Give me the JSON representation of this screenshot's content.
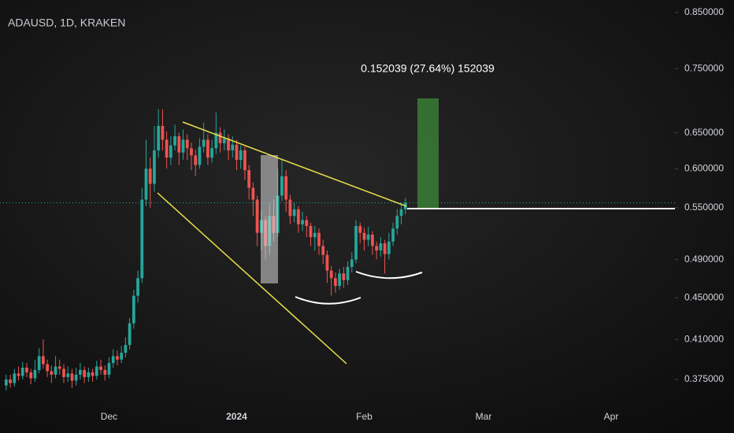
{
  "chart_data": {
    "type": "candlestick",
    "title": "ADAUSD, 1D, KRAKEN",
    "annotation": "0.152039 (27.64%) 152039",
    "log": true,
    "grid": false,
    "up_color": "#26a69a",
    "down_color": "#ef5350",
    "ylim": [
      0.357,
      0.874
    ],
    "yticks": [
      {
        "value": 0.85,
        "label": "0.850000"
      },
      {
        "value": 0.75,
        "label": "0.750000"
      },
      {
        "value": 0.65,
        "label": "0.650000"
      },
      {
        "value": 0.6,
        "label": "0.600000"
      },
      {
        "value": 0.55,
        "label": "0.550000"
      },
      {
        "value": 0.49,
        "label": "0.490000"
      },
      {
        "value": 0.45,
        "label": "0.450000"
      },
      {
        "value": 0.41,
        "label": "0.410000"
      },
      {
        "value": 0.375,
        "label": "0.375000"
      }
    ],
    "categories": [
      null,
      null,
      null,
      null,
      null,
      null,
      null,
      null,
      null,
      null,
      null,
      null,
      null,
      null,
      null,
      null,
      null,
      null,
      null,
      null,
      null,
      null,
      null,
      null,
      null,
      null,
      "Dec",
      null,
      null,
      null,
      null,
      null,
      null,
      null,
      null,
      null,
      null,
      null,
      null,
      null,
      null,
      null,
      null,
      null,
      null,
      null,
      null,
      null,
      null,
      null,
      null,
      null,
      null,
      null,
      null,
      null,
      null,
      "2024",
      null,
      null,
      null,
      null,
      null,
      null,
      null,
      null,
      null,
      null,
      null,
      null,
      null,
      null,
      null,
      null,
      null,
      null,
      null,
      null,
      null,
      null,
      null,
      null,
      null,
      null,
      null,
      null,
      null,
      null,
      "Feb",
      null,
      null,
      null,
      null,
      null,
      null,
      null,
      null,
      null,
      null,
      null,
      null,
      null,
      null,
      null,
      null,
      null,
      null,
      null,
      null,
      null,
      null,
      null,
      null,
      null,
      null,
      null,
      null,
      "Mar",
      null,
      null,
      null,
      null,
      null,
      null,
      null,
      null,
      null,
      null,
      null,
      null,
      null,
      null,
      null,
      null,
      null,
      null,
      null,
      null,
      null,
      null,
      null,
      null,
      null,
      null,
      null,
      null,
      null,
      null,
      "Apr",
      null,
      null,
      null,
      null,
      null,
      null,
      null,
      null,
      null,
      null,
      null,
      null,
      null,
      null,
      null
    ],
    "ohlc": [
      null,
      [
        0.37,
        0.379,
        0.366,
        0.375
      ],
      [
        0.375,
        0.379,
        0.368,
        0.372
      ],
      [
        0.372,
        0.384,
        0.369,
        0.38
      ],
      [
        0.38,
        0.386,
        0.374,
        0.378
      ],
      [
        0.378,
        0.39,
        0.375,
        0.385
      ],
      [
        0.385,
        0.389,
        0.377,
        0.381
      ],
      [
        0.381,
        0.384,
        0.371,
        0.376
      ],
      [
        0.376,
        0.392,
        0.373,
        0.383
      ],
      [
        0.383,
        0.402,
        0.38,
        0.395
      ],
      [
        0.395,
        0.41,
        0.384,
        0.388
      ],
      [
        0.388,
        0.392,
        0.377,
        0.382
      ],
      [
        0.382,
        0.387,
        0.372,
        0.379
      ],
      [
        0.379,
        0.395,
        0.376,
        0.386
      ],
      [
        0.386,
        0.392,
        0.379,
        0.384
      ],
      [
        0.384,
        0.388,
        0.372,
        0.377
      ],
      [
        0.377,
        0.386,
        0.373,
        0.38
      ],
      [
        0.38,
        0.384,
        0.368,
        0.374
      ],
      [
        0.374,
        0.385,
        0.37,
        0.379
      ],
      [
        0.379,
        0.389,
        0.375,
        0.383
      ],
      [
        0.383,
        0.386,
        0.372,
        0.377
      ],
      [
        0.377,
        0.385,
        0.373,
        0.381
      ],
      [
        0.381,
        0.384,
        0.373,
        0.378
      ],
      [
        0.378,
        0.391,
        0.375,
        0.386
      ],
      [
        0.386,
        0.392,
        0.379,
        0.383
      ],
      [
        0.383,
        0.387,
        0.374,
        0.379
      ],
      [
        0.379,
        0.394,
        0.376,
        0.389
      ],
      [
        0.389,
        0.401,
        0.385,
        0.395
      ],
      [
        0.395,
        0.4,
        0.387,
        0.392
      ],
      [
        0.392,
        0.404,
        0.389,
        0.398
      ],
      [
        0.398,
        0.412,
        0.394,
        0.405
      ],
      [
        0.405,
        0.43,
        0.401,
        0.425
      ],
      [
        0.425,
        0.458,
        0.42,
        0.452
      ],
      [
        0.452,
        0.478,
        0.445,
        0.47
      ],
      [
        0.47,
        0.575,
        0.465,
        0.56
      ],
      [
        0.56,
        0.64,
        0.552,
        0.6
      ],
      [
        0.6,
        0.615,
        0.55,
        0.58
      ],
      [
        0.58,
        0.66,
        0.57,
        0.625
      ],
      [
        0.625,
        0.685,
        0.615,
        0.66
      ],
      [
        0.66,
        0.685,
        0.625,
        0.64
      ],
      [
        0.64,
        0.652,
        0.6,
        0.615
      ],
      [
        0.615,
        0.645,
        0.605,
        0.632
      ],
      [
        0.632,
        0.662,
        0.625,
        0.645
      ],
      [
        0.645,
        0.65,
        0.605,
        0.622
      ],
      [
        0.622,
        0.655,
        0.612,
        0.64
      ],
      [
        0.64,
        0.648,
        0.612,
        0.628
      ],
      [
        0.628,
        0.636,
        0.598,
        0.618
      ],
      [
        0.618,
        0.626,
        0.59,
        0.605
      ],
      [
        0.605,
        0.642,
        0.6,
        0.63
      ],
      [
        0.63,
        0.665,
        0.622,
        0.64
      ],
      [
        0.64,
        0.648,
        0.605,
        0.615
      ],
      [
        0.615,
        0.64,
        0.608,
        0.628
      ],
      [
        0.628,
        0.68,
        0.62,
        0.65
      ],
      [
        0.65,
        0.658,
        0.622,
        0.635
      ],
      [
        0.635,
        0.655,
        0.625,
        0.642
      ],
      [
        0.642,
        0.648,
        0.612,
        0.625
      ],
      [
        0.625,
        0.645,
        0.615,
        0.633
      ],
      [
        0.633,
        0.64,
        0.598,
        0.612
      ],
      [
        0.612,
        0.632,
        0.6,
        0.625
      ],
      [
        0.625,
        0.63,
        0.585,
        0.598
      ],
      [
        0.598,
        0.605,
        0.56,
        0.575
      ],
      [
        0.575,
        0.582,
        0.54,
        0.56
      ],
      [
        0.56,
        0.565,
        0.505,
        0.52
      ],
      [
        0.52,
        0.548,
        0.5,
        0.535
      ],
      [
        0.535,
        0.54,
        0.49,
        0.505
      ],
      [
        0.505,
        0.555,
        0.495,
        0.54
      ],
      [
        0.54,
        0.56,
        0.51,
        0.52
      ],
      [
        0.52,
        0.6,
        0.515,
        0.565
      ],
      [
        0.565,
        0.612,
        0.558,
        0.59
      ],
      [
        0.59,
        0.598,
        0.545,
        0.56
      ],
      [
        0.56,
        0.566,
        0.53,
        0.54
      ],
      [
        0.54,
        0.556,
        0.532,
        0.548
      ],
      [
        0.548,
        0.552,
        0.52,
        0.53
      ],
      [
        0.53,
        0.545,
        0.522,
        0.535
      ],
      [
        0.535,
        0.54,
        0.515,
        0.528
      ],
      [
        0.528,
        0.532,
        0.505,
        0.515
      ],
      [
        0.515,
        0.528,
        0.5,
        0.52
      ],
      [
        0.52,
        0.525,
        0.495,
        0.505
      ],
      [
        0.505,
        0.512,
        0.485,
        0.495
      ],
      [
        0.495,
        0.5,
        0.465,
        0.478
      ],
      [
        0.478,
        0.483,
        0.452,
        0.47
      ],
      [
        0.47,
        0.476,
        0.455,
        0.462
      ],
      [
        0.462,
        0.48,
        0.458,
        0.475
      ],
      [
        0.475,
        0.482,
        0.46,
        0.468
      ],
      [
        0.468,
        0.488,
        0.463,
        0.482
      ],
      [
        0.482,
        0.498,
        0.476,
        0.49
      ],
      [
        0.49,
        0.535,
        0.486,
        0.528
      ],
      [
        0.528,
        0.532,
        0.508,
        0.52
      ],
      [
        0.52,
        0.526,
        0.5,
        0.512
      ],
      [
        0.512,
        0.527,
        0.505,
        0.518
      ],
      [
        0.518,
        0.522,
        0.495,
        0.505
      ],
      [
        0.505,
        0.51,
        0.49,
        0.5
      ],
      [
        0.5,
        0.515,
        0.493,
        0.508
      ],
      [
        0.508,
        0.512,
        0.475,
        0.496
      ],
      [
        0.496,
        0.52,
        0.49,
        0.51
      ],
      [
        0.51,
        0.532,
        0.505,
        0.525
      ],
      [
        0.525,
        0.548,
        0.518,
        0.54
      ],
      [
        0.54,
        0.556,
        0.53,
        0.548
      ],
      [
        0.548,
        0.562,
        0.542,
        0.556
      ],
      null,
      null,
      null,
      null,
      null,
      null,
      null,
      null,
      null,
      null,
      null,
      null,
      null,
      null,
      null,
      null,
      null,
      null,
      null,
      null,
      null,
      null,
      null,
      null,
      null,
      null,
      null,
      null,
      null,
      null,
      null,
      null,
      null,
      null,
      null,
      null,
      null,
      null,
      null,
      null,
      null,
      null,
      null,
      null,
      null,
      null,
      null,
      null,
      null,
      null,
      null,
      null,
      null,
      null,
      null,
      null,
      null,
      null,
      null,
      null,
      null,
      null,
      null,
      null,
      null
    ]
  }
}
